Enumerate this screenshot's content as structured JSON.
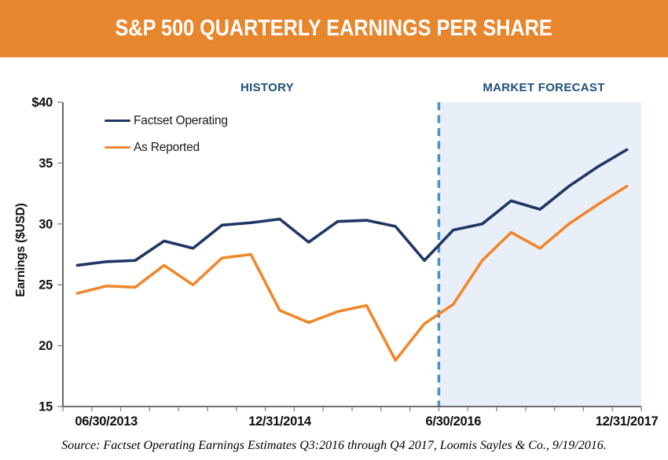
{
  "banner": {
    "title": "S&P 500 QUARTERLY EARNINGS PER SHARE"
  },
  "section_labels": {
    "history": "HISTORY",
    "forecast": "MARKET FORECAST"
  },
  "legend": [
    {
      "label": "Factset Operating",
      "color": "#1F3764"
    },
    {
      "label": "As Reported",
      "color": "#F0872B"
    }
  ],
  "y_axis_title": "Earnings ($USD)",
  "source": "Source: Factset Operating Earnings Estimates Q3:2016 through Q4 2017, Loomis Sayles & Co., 9/19/2016.",
  "colors": {
    "banner": "#E8862D",
    "heading": "#1F4E79",
    "navy": "#1F3764",
    "orange": "#F0872B",
    "shade": "#E9EFF8",
    "divider": "#4D90C8",
    "axis": "#404040",
    "tick": "#8C8C8C"
  },
  "chart_data": {
    "type": "line",
    "title": "S&P 500 QUARTERLY EARNINGS PER SHARE",
    "ylabel": "Earnings ($USD)",
    "ylim": [
      15,
      40
    ],
    "y_ticks": [
      15,
      20,
      25,
      30,
      35,
      40
    ],
    "y_tick_labels": [
      "15",
      "20",
      "25",
      "30",
      "35",
      "$40"
    ],
    "grid": false,
    "legend_position": "upper-left",
    "x": [
      "3/31/2013",
      "6/30/2013",
      "9/30/2013",
      "12/31/2013",
      "3/31/2014",
      "6/30/2014",
      "9/30/2014",
      "12/31/2014",
      "3/31/2015",
      "6/30/2015",
      "9/30/2015",
      "12/31/2015",
      "3/31/2016",
      "6/30/2016",
      "9/30/2016",
      "12/31/2016",
      "3/31/2017",
      "6/30/2017",
      "9/30/2017",
      "12/31/2017"
    ],
    "x_tick_labels": [
      {
        "index": 1,
        "label": "06/30/2013"
      },
      {
        "index": 7,
        "label": "12/31/2014"
      },
      {
        "index": 13,
        "label": "6/30/2016"
      },
      {
        "index": 19,
        "label": "12/31/2017"
      }
    ],
    "forecast_start_boundary_index": 13,
    "annotations": {
      "history_region": "HISTORY",
      "forecast_region": "MARKET FORECAST"
    },
    "series": [
      {
        "name": "Factset Operating",
        "color": "#1F3764",
        "values": [
          26.6,
          26.9,
          27.0,
          28.6,
          28.0,
          29.9,
          30.1,
          30.4,
          28.5,
          30.2,
          30.3,
          29.8,
          27.0,
          29.5,
          30.0,
          31.9,
          31.2,
          33.1,
          34.7,
          36.1
        ]
      },
      {
        "name": "As Reported",
        "color": "#F0872B",
        "values": [
          24.3,
          24.9,
          24.8,
          26.6,
          25.0,
          27.2,
          27.5,
          22.9,
          21.9,
          22.8,
          23.3,
          18.8,
          21.8,
          23.4,
          27.0,
          29.3,
          28.0,
          30.0,
          31.6,
          33.1
        ]
      }
    ]
  }
}
